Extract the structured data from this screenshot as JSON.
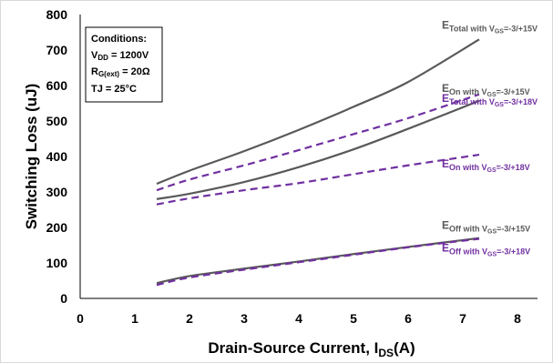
{
  "chart_data": {
    "type": "line",
    "xlabel": "Drain-Source Current, IDS(A)",
    "xlabel_main": "Drain-Source Current, I",
    "xlabel_sub": "DS",
    "xlabel_tail": "(A)",
    "ylabel": "Switching Loss (uJ)",
    "xlim": [
      0,
      8
    ],
    "ylim": [
      0,
      800
    ],
    "xticks": [
      "0",
      "1",
      "2",
      "3",
      "4",
      "5",
      "6",
      "7",
      "8"
    ],
    "yticks": [
      "0",
      "100",
      "200",
      "300",
      "400",
      "500",
      "600",
      "700",
      "800"
    ],
    "grid": false,
    "conditions": {
      "title": "Conditions:",
      "vdd": {
        "main": "V",
        "sub": "DD",
        "tail": " = 1200V"
      },
      "rg": {
        "main": "R",
        "sub": "G(ext)",
        "tail": " = 20Ω"
      },
      "tj": "TJ = 25°C"
    },
    "series": [
      {
        "name": "ETotal with VGS=-3/+15V",
        "lbl_main": "E",
        "lbl_sub": "Total with V",
        "lbl_sub2": "GS",
        "lbl_tail": "=-3/+15V",
        "color": "#595959",
        "dash": false,
        "x": [
          1.4,
          2,
          3,
          4,
          5,
          6,
          7.3
        ],
        "y": [
          323,
          360,
          415,
          475,
          540,
          610,
          730
        ]
      },
      {
        "name": "ETotal with VGS=-3/+18V",
        "lbl_main": "E",
        "lbl_sub": "Total with V",
        "lbl_sub2": "GS",
        "lbl_tail": "=-3/+18V",
        "color": "#7030a0",
        "dash": true,
        "x": [
          1.4,
          2,
          3,
          4,
          5,
          6,
          7.3
        ],
        "y": [
          305,
          335,
          375,
          418,
          463,
          508,
          575
        ]
      },
      {
        "name": "EOn with VGS=-3/+15V",
        "lbl_main": "E",
        "lbl_sub": "On with V",
        "lbl_sub2": "GS",
        "lbl_tail": "=-3/+15V",
        "color": "#595959",
        "dash": false,
        "x": [
          1.4,
          2,
          3,
          4,
          5,
          6,
          7.3
        ],
        "y": [
          280,
          295,
          328,
          370,
          420,
          478,
          557
        ]
      },
      {
        "name": "EOn with VGS=-3/+18V",
        "lbl_main": "E",
        "lbl_sub": "On with V",
        "lbl_sub2": "GS",
        "lbl_tail": "=-3/+18V",
        "color": "#7030a0",
        "dash": true,
        "x": [
          1.4,
          2,
          3,
          4,
          5,
          6,
          7.3
        ],
        "y": [
          265,
          282,
          305,
          325,
          350,
          375,
          405
        ]
      },
      {
        "name": "EOff with VGS=-3/+15V",
        "lbl_main": "E",
        "lbl_sub": "Off with V",
        "lbl_sub2": "GS",
        "lbl_tail": "=-3/+15V",
        "color": "#595959",
        "dash": false,
        "x": [
          1.4,
          2,
          3,
          4,
          5,
          6,
          7.3
        ],
        "y": [
          43,
          63,
          84,
          104,
          125,
          145,
          170
        ]
      },
      {
        "name": "EOff with VGS=-3/+18V",
        "lbl_main": "E",
        "lbl_sub": "Off with V",
        "lbl_sub2": "GS",
        "lbl_tail": "=-3/+18V",
        "color": "#7030a0",
        "dash": true,
        "x": [
          1.4,
          2,
          3,
          4,
          5,
          6,
          7.3
        ],
        "y": [
          38,
          59,
          81,
          102,
          123,
          144,
          168
        ]
      }
    ]
  }
}
